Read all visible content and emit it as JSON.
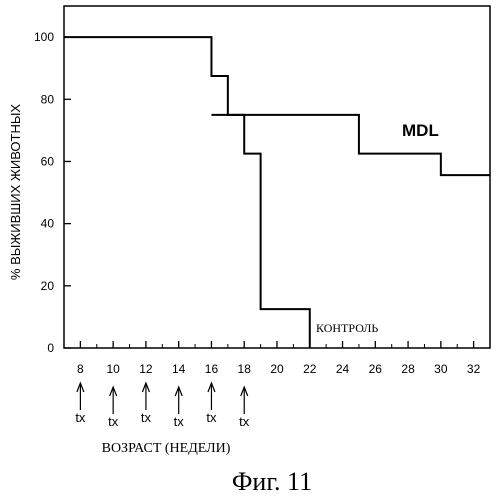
{
  "chart_data": {
    "type": "line",
    "step": true,
    "title": "",
    "xlabel": "ВОЗРАСТ (НЕДЕЛИ)",
    "ylabel": "% ВЫЖИВШИХ ЖИВОТНЫХ",
    "xlim": [
      7,
      33
    ],
    "ylim": [
      0,
      110
    ],
    "xticks": [
      8,
      10,
      12,
      14,
      16,
      18,
      20,
      22,
      24,
      26,
      28,
      30,
      32
    ],
    "yticks": [
      0,
      20,
      40,
      60,
      80,
      100
    ],
    "grid": false,
    "series": [
      {
        "name": "MDL",
        "x": [
          7,
          16,
          17,
          25,
          30,
          33
        ],
        "y": [
          100,
          87.5,
          75,
          62.5,
          55.6,
          55.6
        ]
      },
      {
        "name": "КОНТРОЛЬ",
        "x": [
          16,
          18,
          19,
          22
        ],
        "y": [
          75,
          62.5,
          12.5,
          0
        ]
      }
    ],
    "annotations": [
      {
        "label": "tx",
        "x": 8
      },
      {
        "label": "tx",
        "x": 10
      },
      {
        "label": "tx",
        "x": 12
      },
      {
        "label": "tx",
        "x": 14
      },
      {
        "label": "tx",
        "x": 16
      },
      {
        "label": "tx",
        "x": 18
      }
    ]
  },
  "figure_caption": "Фиг. 11",
  "styles": {
    "line_color": "#000000",
    "background": "#ffffff"
  }
}
